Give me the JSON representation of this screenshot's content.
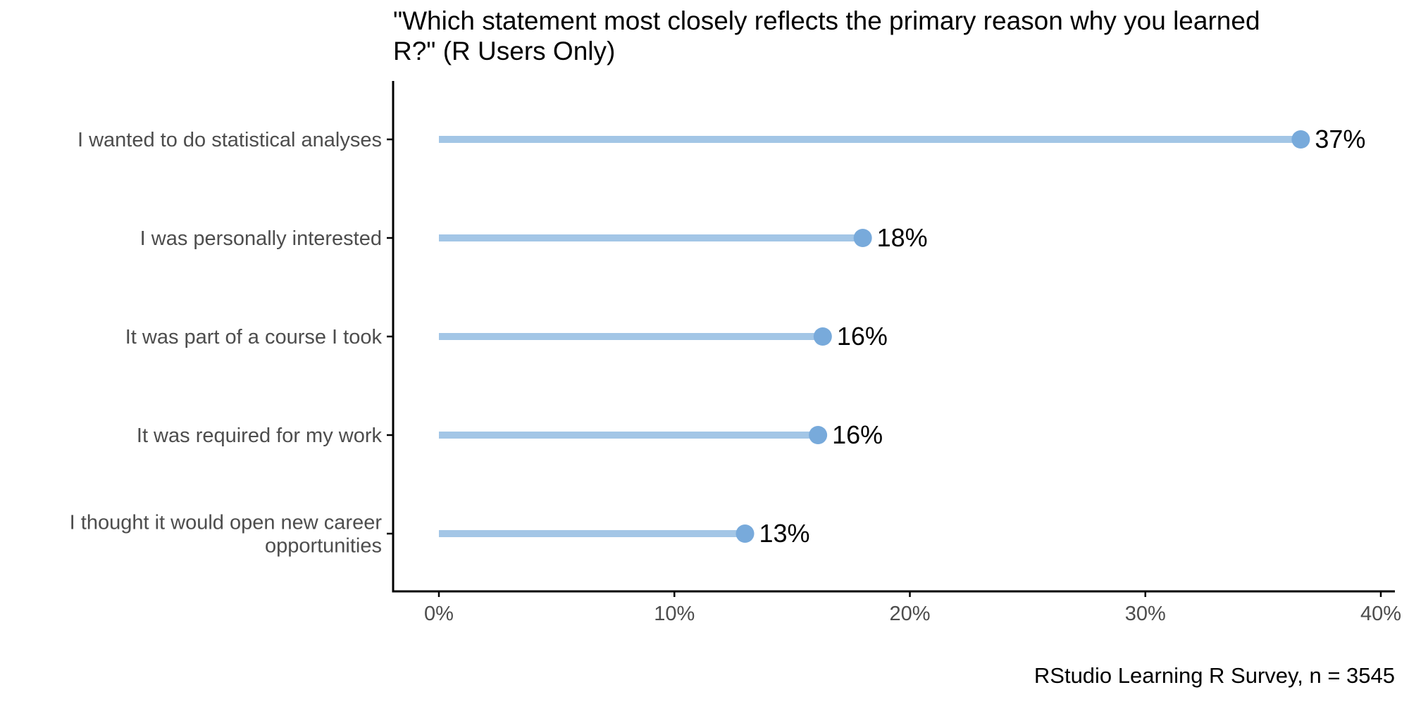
{
  "chart_data": {
    "type": "lollipop",
    "title": "\"Which statement most closely reflects the primary reason why you learned R?\" (R Users Only)",
    "caption": "RStudio Learning R Survey, n = 3545",
    "xlabel": "",
    "ylabel": "",
    "xlim": [
      0,
      0.4
    ],
    "x_ticks": [
      0,
      0.1,
      0.2,
      0.3,
      0.4
    ],
    "x_tick_labels": [
      "0%",
      "10%",
      "20%",
      "30%",
      "40%"
    ],
    "grid": false,
    "categories": [
      "I wanted to do statistical analyses",
      "I was personally interested",
      "It was part of a course I took",
      "It was required for my work",
      "I thought it would open new career\nopportunities"
    ],
    "values": [
      0.366,
      0.18,
      0.163,
      0.161,
      0.13
    ],
    "value_labels": [
      "37%",
      "18%",
      "16%",
      "16%",
      "13%"
    ],
    "colors": {
      "segment": "#a3c6e6",
      "point": "#78aadb",
      "axis": "#000000",
      "category_text": "#4d4d4d",
      "tick_text": "#4d4d4d",
      "value_text": "#000000"
    }
  }
}
